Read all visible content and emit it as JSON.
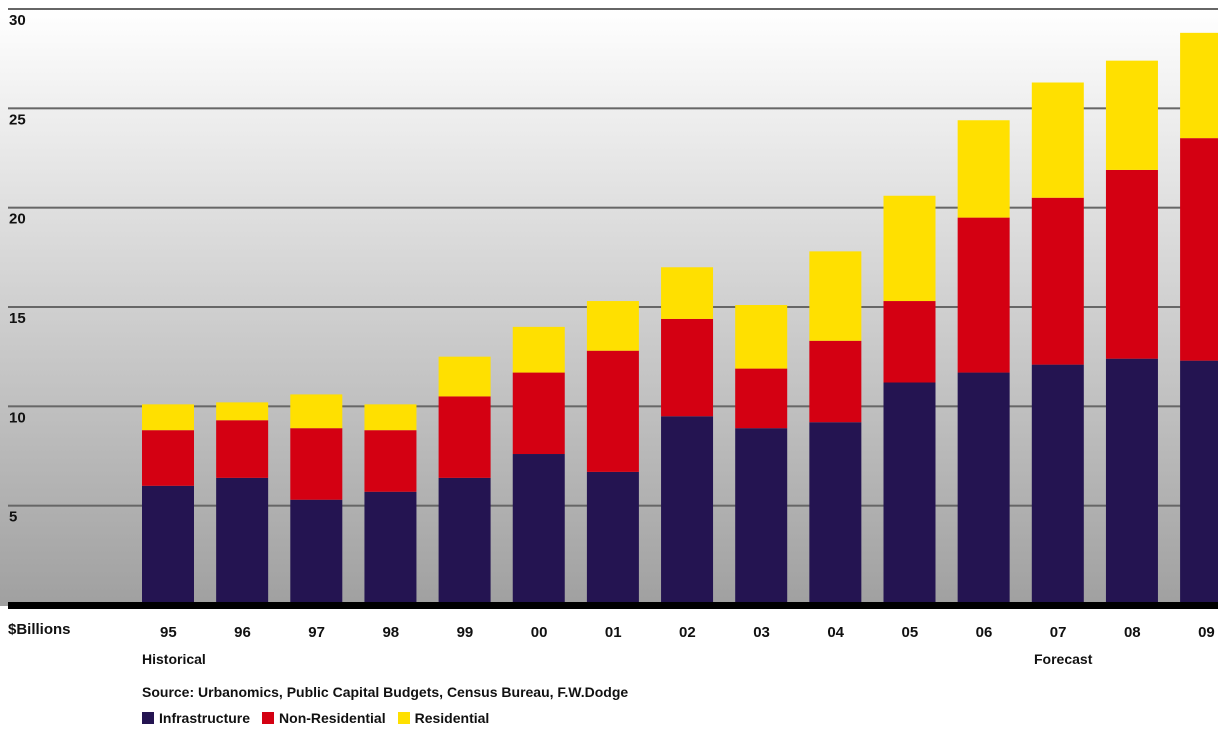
{
  "chart_data": {
    "type": "bar",
    "stacked": true,
    "categories": [
      "95",
      "96",
      "97",
      "98",
      "99",
      "00",
      "01",
      "02",
      "03",
      "04",
      "05",
      "06",
      "07",
      "08",
      "09"
    ],
    "series": [
      {
        "name": "Infrastructure",
        "color": "#241451",
        "values": [
          6.0,
          6.4,
          5.3,
          5.7,
          6.4,
          7.6,
          6.7,
          9.5,
          8.9,
          9.2,
          11.2,
          11.7,
          12.1,
          12.4,
          12.3
        ]
      },
      {
        "name": "Non-Residential",
        "color": "#d40012",
        "values": [
          2.8,
          2.9,
          3.6,
          3.1,
          4.1,
          4.1,
          6.1,
          4.9,
          3.0,
          4.1,
          4.1,
          7.8,
          8.4,
          9.5,
          11.2
        ]
      },
      {
        "name": "Residential",
        "color": "#ffe000",
        "values": [
          1.3,
          0.9,
          1.7,
          1.3,
          2.0,
          2.3,
          2.5,
          2.6,
          3.2,
          4.5,
          5.3,
          4.9,
          5.8,
          5.5,
          5.3
        ]
      }
    ],
    "yticks": [
      5,
      10,
      15,
      20,
      25,
      30
    ],
    "ylim": [
      0,
      30
    ],
    "ylabel": "$Billions",
    "grid": true,
    "legend_position": "bottom-left",
    "annotations": {
      "historical": "Historical",
      "forecast": "Forecast"
    },
    "source": "Source: Urbanomics, Public Capital Budgets, Census Bureau, F.W.Dodge"
  },
  "colors": {
    "outer_border": "#c5fbff",
    "gradient_top": "#ffffff",
    "gradient_bottom": "#a0a0a0",
    "axis": "#000000",
    "gridline": "#666666"
  }
}
